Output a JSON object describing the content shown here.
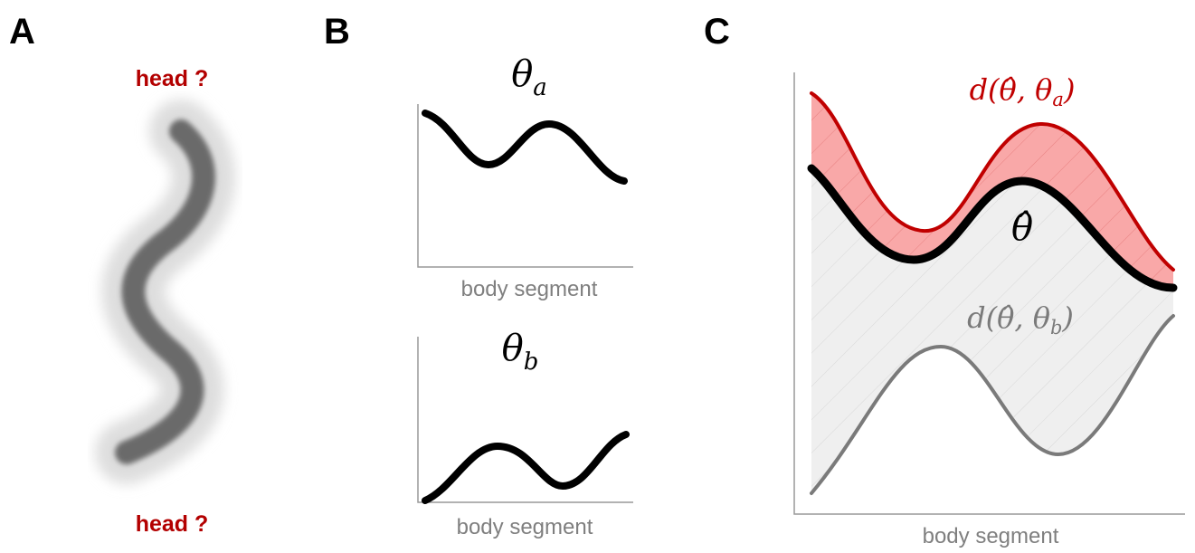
{
  "panels": [
    {
      "label": "A",
      "head_top": "head ?",
      "head_bottom": "head ?"
    },
    {
      "label": "B",
      "top_title": {
        "symbol": "θ",
        "subscript": "a"
      },
      "top_xlabel": "body segment",
      "bottom_title": {
        "symbol": "θ",
        "subscript": "b"
      },
      "bottom_xlabel": "body segment"
    },
    {
      "label": "C",
      "dist_a": {
        "prefix": "d(",
        "estimate": "θ̂",
        "sep": ", ",
        "symbol": "θ",
        "subscript": "a",
        "suffix": ")"
      },
      "estimate_label": "θ̂",
      "dist_b": {
        "prefix": "d(",
        "estimate": "θ̂",
        "sep": ", ",
        "symbol": "θ",
        "subscript": "b",
        "suffix": ")"
      },
      "xlabel": "body segment"
    }
  ]
}
